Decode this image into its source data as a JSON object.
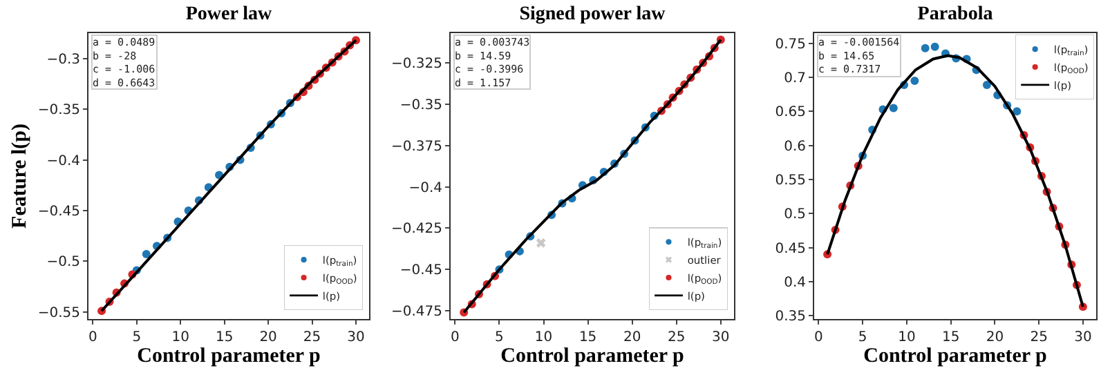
{
  "chart_data": [
    {
      "type": "scatter",
      "title": "Power law",
      "xlabel": "Control parameter p",
      "ylabel": "Feature l(p)",
      "xlim": [
        -0.5,
        31.5
      ],
      "xticks": [
        0,
        5,
        10,
        15,
        20,
        25,
        30
      ],
      "ylim": [
        -0.557,
        -0.275
      ],
      "yticks": [
        -0.55,
        -0.5,
        -0.45,
        -0.4,
        -0.35,
        -0.3
      ],
      "grid": false,
      "legend": "bottom right",
      "annotations": [
        "a = 0.0489\nb = -28\nc = -1.006\nd = 0.6643"
      ],
      "series": [
        {
          "name": "l(p$_{train}$)",
          "color": "#1f77b4",
          "marker": "circle",
          "x": [
            5.0,
            6.1,
            7.3,
            8.5,
            9.7,
            10.9,
            12.1,
            13.2,
            14.4,
            15.6,
            16.8,
            18,
            19.1,
            20.3,
            21.5,
            22.5
          ],
          "values": [
            -0.509,
            -0.493,
            -0.485,
            -0.477,
            -0.461,
            -0.45,
            -0.44,
            -0.427,
            -0.415,
            -0.407,
            -0.4,
            -0.388,
            -0.376,
            -0.365,
            -0.354,
            -0.344
          ]
        },
        {
          "name": "l(p$_{OOD}$)",
          "color": "#d62728",
          "marker": "circle",
          "x": [
            1,
            1.9,
            2.7,
            3.6,
            4.5,
            23.3,
            24.0,
            24.6,
            25.3,
            25.9,
            26.6,
            27.3,
            28.0,
            28.7,
            29.3,
            30
          ],
          "values": [
            -0.549,
            -0.54,
            -0.531,
            -0.522,
            -0.513,
            -0.338,
            -0.333,
            -0.327,
            -0.321,
            -0.315,
            -0.309,
            -0.304,
            -0.298,
            -0.293,
            -0.287,
            -0.282
          ]
        },
        {
          "name": "l(p)",
          "type": "line",
          "color": "#000000",
          "marker": "none",
          "x": [
            1,
            5,
            10,
            15,
            20,
            25,
            30
          ],
          "values": [
            -0.549,
            -0.511,
            -0.463,
            -0.415,
            -0.367,
            -0.322,
            -0.282
          ]
        }
      ]
    },
    {
      "type": "scatter",
      "title": "Signed power law",
      "xlabel": "Control parameter p",
      "xlim": [
        -0.5,
        31.5
      ],
      "xticks": [
        0,
        5,
        10,
        15,
        20,
        25,
        30
      ],
      "ylim": [
        -0.48,
        -0.307
      ],
      "yticks": [
        -0.475,
        -0.45,
        -0.425,
        -0.4,
        -0.375,
        -0.35,
        -0.325
      ],
      "grid": false,
      "legend": "bottom right",
      "annotations": [
        "a = 0.003743\nb = 14.59\nc = -0.3996\nd = 1.157"
      ],
      "series": [
        {
          "name": "l(p$_{train}$)",
          "color": "#1f77b4",
          "marker": "circle",
          "x": [
            5.0,
            6.1,
            7.3,
            8.5,
            10.9,
            12.1,
            13.2,
            14.4,
            15.6,
            16.8,
            18,
            19.1,
            20.3,
            21.5,
            22.5
          ],
          "values": [
            -0.45,
            -0.441,
            -0.439,
            -0.43,
            -0.417,
            -0.41,
            -0.407,
            -0.399,
            -0.396,
            -0.391,
            -0.386,
            -0.38,
            -0.372,
            -0.364,
            -0.357
          ]
        },
        {
          "name": "outlier",
          "color": "#c8c8c8",
          "marker": "cross",
          "x": [
            9.7
          ],
          "values": [
            -0.434
          ]
        },
        {
          "name": "l(p$_{OOD}$)",
          "color": "#d62728",
          "marker": "circle",
          "x": [
            1,
            1.9,
            2.7,
            3.6,
            4.5,
            23.3,
            24.0,
            24.6,
            25.3,
            25.9,
            26.6,
            27.3,
            28.0,
            28.7,
            29.3,
            30
          ],
          "values": [
            -0.476,
            -0.471,
            -0.465,
            -0.459,
            -0.454,
            -0.354,
            -0.35,
            -0.346,
            -0.342,
            -0.338,
            -0.334,
            -0.329,
            -0.325,
            -0.321,
            -0.316,
            -0.311
          ]
        },
        {
          "name": "l(p)",
          "type": "line",
          "color": "#000000",
          "marker": "none",
          "x": [
            1,
            5,
            8,
            10,
            12,
            14,
            16,
            18,
            20,
            22,
            24,
            26,
            28,
            30
          ],
          "values": [
            -0.476,
            -0.45,
            -0.432,
            -0.421,
            -0.41,
            -0.402,
            -0.396,
            -0.387,
            -0.374,
            -0.361,
            -0.35,
            -0.338,
            -0.325,
            -0.311
          ]
        }
      ]
    },
    {
      "type": "scatter",
      "title": "Parabola",
      "xlabel": "Control parameter p",
      "xlim": [
        -0.5,
        31.5
      ],
      "xticks": [
        0,
        5,
        10,
        15,
        20,
        25,
        30
      ],
      "ylim": [
        0.345,
        0.765
      ],
      "yticks": [
        0.35,
        0.4,
        0.45,
        0.5,
        0.55,
        0.6,
        0.65,
        0.7,
        0.75
      ],
      "grid": false,
      "legend": "top right",
      "annotations": [
        "a = -0.001564\nb = 14.65\nc = 0.7317"
      ],
      "series": [
        {
          "name": "l(p$_{train}$)",
          "color": "#1f77b4",
          "marker": "circle",
          "x": [
            5.0,
            6.1,
            7.3,
            8.5,
            9.7,
            10.9,
            12.1,
            13.2,
            14.4,
            15.6,
            16.8,
            17.9,
            19.1,
            20.3,
            21.4,
            22.5
          ],
          "values": [
            0.585,
            0.623,
            0.653,
            0.655,
            0.689,
            0.695,
            0.743,
            0.745,
            0.735,
            0.728,
            0.727,
            0.711,
            0.689,
            0.674,
            0.659,
            0.65
          ]
        },
        {
          "name": "l(p$_{OOD}$)",
          "color": "#d62728",
          "marker": "circle",
          "x": [
            1,
            1.9,
            2.7,
            3.6,
            4.5,
            23.3,
            24.0,
            24.6,
            25.3,
            25.9,
            26.6,
            27.3,
            28.0,
            28.7,
            29.3,
            30
          ],
          "values": [
            0.44,
            0.476,
            0.51,
            0.541,
            0.57,
            0.615,
            0.597,
            0.577,
            0.555,
            0.532,
            0.508,
            0.481,
            0.454,
            0.425,
            0.395,
            0.363
          ]
        },
        {
          "name": "l(p)",
          "type": "line",
          "color": "#000000",
          "marker": "none",
          "x": [
            1,
            3,
            5,
            7,
            9,
            11,
            13,
            14.65,
            16,
            18,
            20,
            22,
            24,
            26,
            28,
            30
          ],
          "values": [
            0.44,
            0.519,
            0.586,
            0.64,
            0.682,
            0.711,
            0.727,
            0.732,
            0.729,
            0.714,
            0.687,
            0.647,
            0.595,
            0.53,
            0.453,
            0.363
          ]
        }
      ]
    }
  ]
}
